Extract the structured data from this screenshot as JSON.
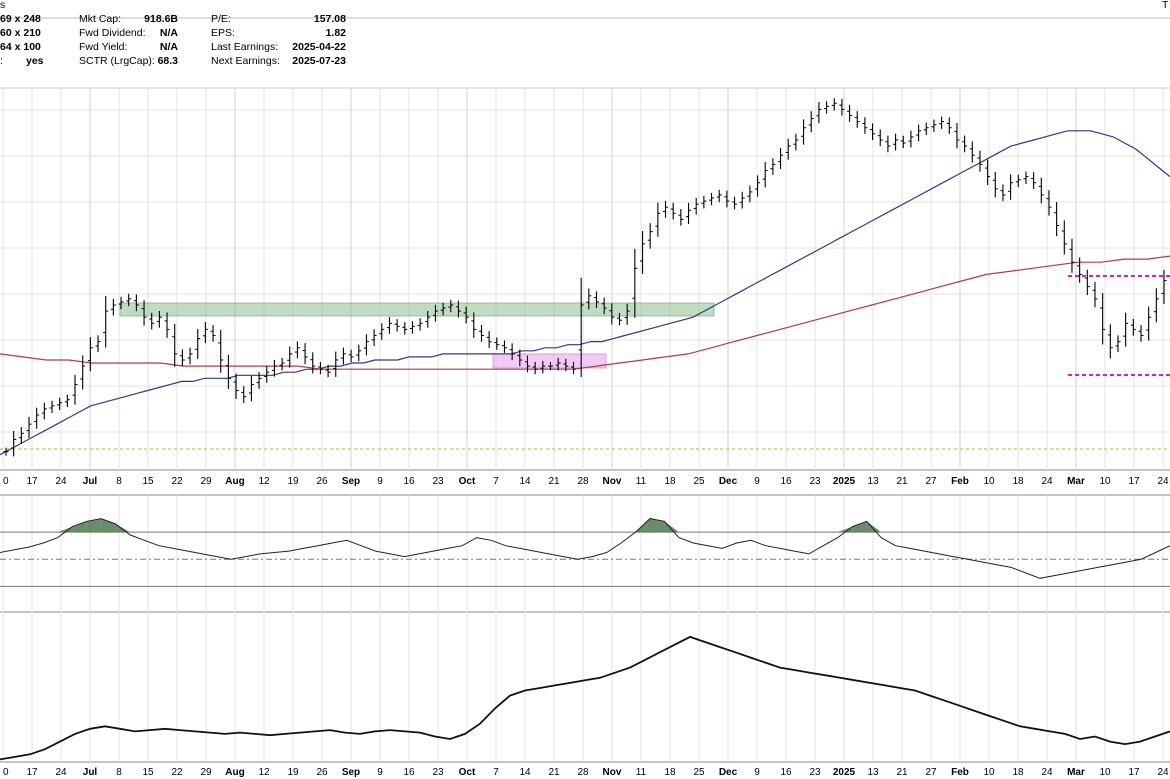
{
  "header": {
    "corner_fragment": "s",
    "top_right_fragment": "T",
    "rows": [
      {
        "c1": "69 x 248",
        "c2_label": "Mkt Cap:",
        "c2_value": "918.6B",
        "c3_label": "P/E:",
        "c3_value": "157.08"
      },
      {
        "c1": "60 x 210",
        "c2_label": "Fwd Dividend:",
        "c2_value": "N/A",
        "c3_label": "EPS:",
        "c3_value": "1.82"
      },
      {
        "c1": "64 x 100",
        "c2_label": "Fwd Yield:",
        "c2_value": "N/A",
        "c3_label": "Last Earnings:",
        "c3_value": "2025-04-22"
      },
      {
        "c1": ":",
        "c1b": "yes",
        "c2_label": "SCTR (LrgCap):",
        "c2_value": "68.3",
        "c3_label": "Next Earnings:",
        "c3_value": "2025-07-23"
      }
    ]
  },
  "x_axis_labels": [
    {
      "text": "0",
      "bold": false
    },
    {
      "text": "17",
      "bold": false
    },
    {
      "text": "24",
      "bold": false
    },
    {
      "text": "Jul",
      "bold": true
    },
    {
      "text": "8",
      "bold": false
    },
    {
      "text": "15",
      "bold": false
    },
    {
      "text": "22",
      "bold": false
    },
    {
      "text": "29",
      "bold": false
    },
    {
      "text": "Aug",
      "bold": true
    },
    {
      "text": "12",
      "bold": false
    },
    {
      "text": "19",
      "bold": false
    },
    {
      "text": "26",
      "bold": false
    },
    {
      "text": "Sep",
      "bold": true
    },
    {
      "text": "9",
      "bold": false
    },
    {
      "text": "16",
      "bold": false
    },
    {
      "text": "23",
      "bold": false
    },
    {
      "text": "Oct",
      "bold": true
    },
    {
      "text": "7",
      "bold": false
    },
    {
      "text": "14",
      "bold": false
    },
    {
      "text": "21",
      "bold": false
    },
    {
      "text": "28",
      "bold": false
    },
    {
      "text": "Nov",
      "bold": true
    },
    {
      "text": "11",
      "bold": false
    },
    {
      "text": "18",
      "bold": false
    },
    {
      "text": "25",
      "bold": false
    },
    {
      "text": "Dec",
      "bold": true
    },
    {
      "text": "9",
      "bold": false
    },
    {
      "text": "16",
      "bold": false
    },
    {
      "text": "23",
      "bold": false
    },
    {
      "text": "2025",
      "bold": true
    },
    {
      "text": "13",
      "bold": false
    },
    {
      "text": "21",
      "bold": false
    },
    {
      "text": "27",
      "bold": false
    },
    {
      "text": "Feb",
      "bold": true
    },
    {
      "text": "10",
      "bold": false
    },
    {
      "text": "18",
      "bold": false
    },
    {
      "text": "24",
      "bold": false
    },
    {
      "text": "Mar",
      "bold": true
    },
    {
      "text": "10",
      "bold": false
    },
    {
      "text": "17",
      "bold": false
    },
    {
      "text": "24",
      "bold": false
    }
  ],
  "colors": {
    "background": "#ffffff",
    "grid": "#e3e3e3",
    "frame": "#8a8a8a",
    "price_bar": "#000000",
    "ma50": "#2b3a8c",
    "ma200": "#b5384a",
    "support_dotted": "#e0a030",
    "green_zone": "#8fbf8f",
    "pink_zone": "#e9a8ee",
    "magenta_box": "#d020c8",
    "rsi_line": "#222222",
    "rsi_overbought_fill": "#4d7a4d",
    "rsi_oversold_fill": "#8a4a4a",
    "lower_line": "#111111"
  },
  "chart_data": [
    {
      "type": "ohlc",
      "panel": "price",
      "y_scale": "arbitrary (axis values not visible)",
      "series": [
        {
          "name": "",
          "description": "daily price bars"
        },
        {
          "name": "",
          "description": "50-day moving average (blue)"
        },
        {
          "name": "",
          "description": "200-day moving average (red)"
        }
      ],
      "closes": [
        16,
        20,
        22,
        25,
        28,
        30,
        31,
        32,
        33,
        38,
        44,
        50,
        52,
        62,
        64,
        65,
        66,
        64,
        60,
        58,
        60,
        56,
        48,
        46,
        48,
        53,
        56,
        54,
        46,
        40,
        36,
        34,
        38,
        40,
        42,
        44,
        45,
        48,
        50,
        47,
        44,
        43,
        42,
        46,
        48,
        47,
        49,
        52,
        54,
        56,
        58,
        57,
        56,
        57,
        58,
        60,
        62,
        63,
        64,
        62,
        60,
        56,
        54,
        52,
        51,
        50,
        48,
        46,
        44,
        43,
        44,
        44,
        45,
        44,
        43,
        64,
        67,
        65,
        63,
        60,
        59,
        62,
        76,
        84,
        88,
        94,
        96,
        94,
        92,
        95,
        97,
        98,
        99,
        100,
        98,
        97,
        99,
        101,
        104,
        108,
        110,
        113,
        116,
        118,
        122,
        125,
        128,
        129,
        130,
        128,
        126,
        124,
        122,
        120,
        118,
        116,
        118,
        117,
        119,
        121,
        122,
        123,
        124,
        122,
        118,
        116,
        113,
        110,
        106,
        102,
        100,
        104,
        105,
        106,
        104,
        100,
        96,
        90,
        84,
        78,
        74,
        70,
        66,
        56,
        50,
        52,
        58,
        56,
        54,
        60,
        66,
        72
      ],
      "ma50": [
        15,
        17,
        19,
        21,
        23,
        25,
        27,
        29,
        31,
        32,
        33,
        34,
        35,
        36,
        37,
        38,
        39,
        39,
        40,
        40,
        40,
        41,
        41,
        41,
        41,
        42,
        42,
        43,
        43,
        44,
        44,
        45,
        45,
        46,
        46,
        46,
        47,
        47,
        47,
        48,
        48,
        48,
        48,
        48,
        48,
        48,
        49,
        49,
        50,
        50,
        51,
        51,
        52,
        52,
        53,
        54,
        55,
        56,
        57,
        58,
        59,
        60,
        62,
        64,
        66,
        68,
        70,
        72,
        74,
        76,
        78,
        80,
        82,
        84,
        86,
        88,
        90,
        92,
        94,
        96,
        98,
        100,
        102,
        104,
        106,
        108,
        110,
        112,
        114,
        116,
        117,
        118,
        119,
        120,
        121,
        121,
        121,
        120,
        119,
        117,
        115,
        112,
        109,
        106
      ],
      "ma200": [
        48,
        47,
        46,
        46,
        45,
        45,
        45,
        45,
        44,
        44,
        44,
        44,
        44,
        44,
        43,
        43,
        43,
        43,
        43,
        43,
        43,
        43,
        43,
        43,
        43,
        43,
        44,
        45,
        46,
        47,
        48,
        50,
        52,
        54,
        56,
        58,
        60,
        62,
        64,
        66,
        68,
        70,
        72,
        74,
        75,
        76,
        77,
        78,
        78,
        79,
        79,
        80
      ]
    },
    {
      "type": "line",
      "panel": "oscillator (RSI-style)",
      "reference_lines": [
        "overbought",
        "midline",
        "oversold"
      ],
      "values": [
        55,
        57,
        59,
        62,
        66,
        74,
        78,
        80,
        76,
        68,
        64,
        60,
        58,
        56,
        54,
        52,
        50,
        52,
        54,
        55,
        56,
        58,
        60,
        62,
        64,
        60,
        56,
        54,
        52,
        54,
        56,
        58,
        60,
        66,
        64,
        60,
        58,
        56,
        54,
        52,
        50,
        52,
        55,
        62,
        70,
        80,
        78,
        66,
        62,
        60,
        58,
        62,
        64,
        60,
        58,
        56,
        54,
        60,
        66,
        74,
        78,
        66,
        60,
        58,
        56,
        54,
        52,
        50,
        48,
        46,
        44,
        40,
        36,
        38,
        40,
        42,
        44,
        46,
        48,
        50,
        55,
        60
      ]
    },
    {
      "type": "line",
      "panel": "lower indicator",
      "values": [
        2,
        4,
        6,
        10,
        16,
        22,
        26,
        28,
        26,
        24,
        25,
        26,
        25,
        24,
        23,
        22,
        23,
        22,
        21,
        22,
        23,
        24,
        25,
        23,
        22,
        24,
        25,
        24,
        23,
        20,
        18,
        22,
        30,
        42,
        52,
        56,
        58,
        60,
        62,
        64,
        66,
        70,
        74,
        80,
        86,
        92,
        98,
        94,
        90,
        86,
        82,
        78,
        74,
        72,
        70,
        68,
        66,
        64,
        62,
        60,
        58,
        56,
        52,
        48,
        44,
        40,
        36,
        32,
        28,
        26,
        24,
        22,
        18,
        20,
        16,
        14,
        16,
        20,
        24
      ]
    }
  ]
}
